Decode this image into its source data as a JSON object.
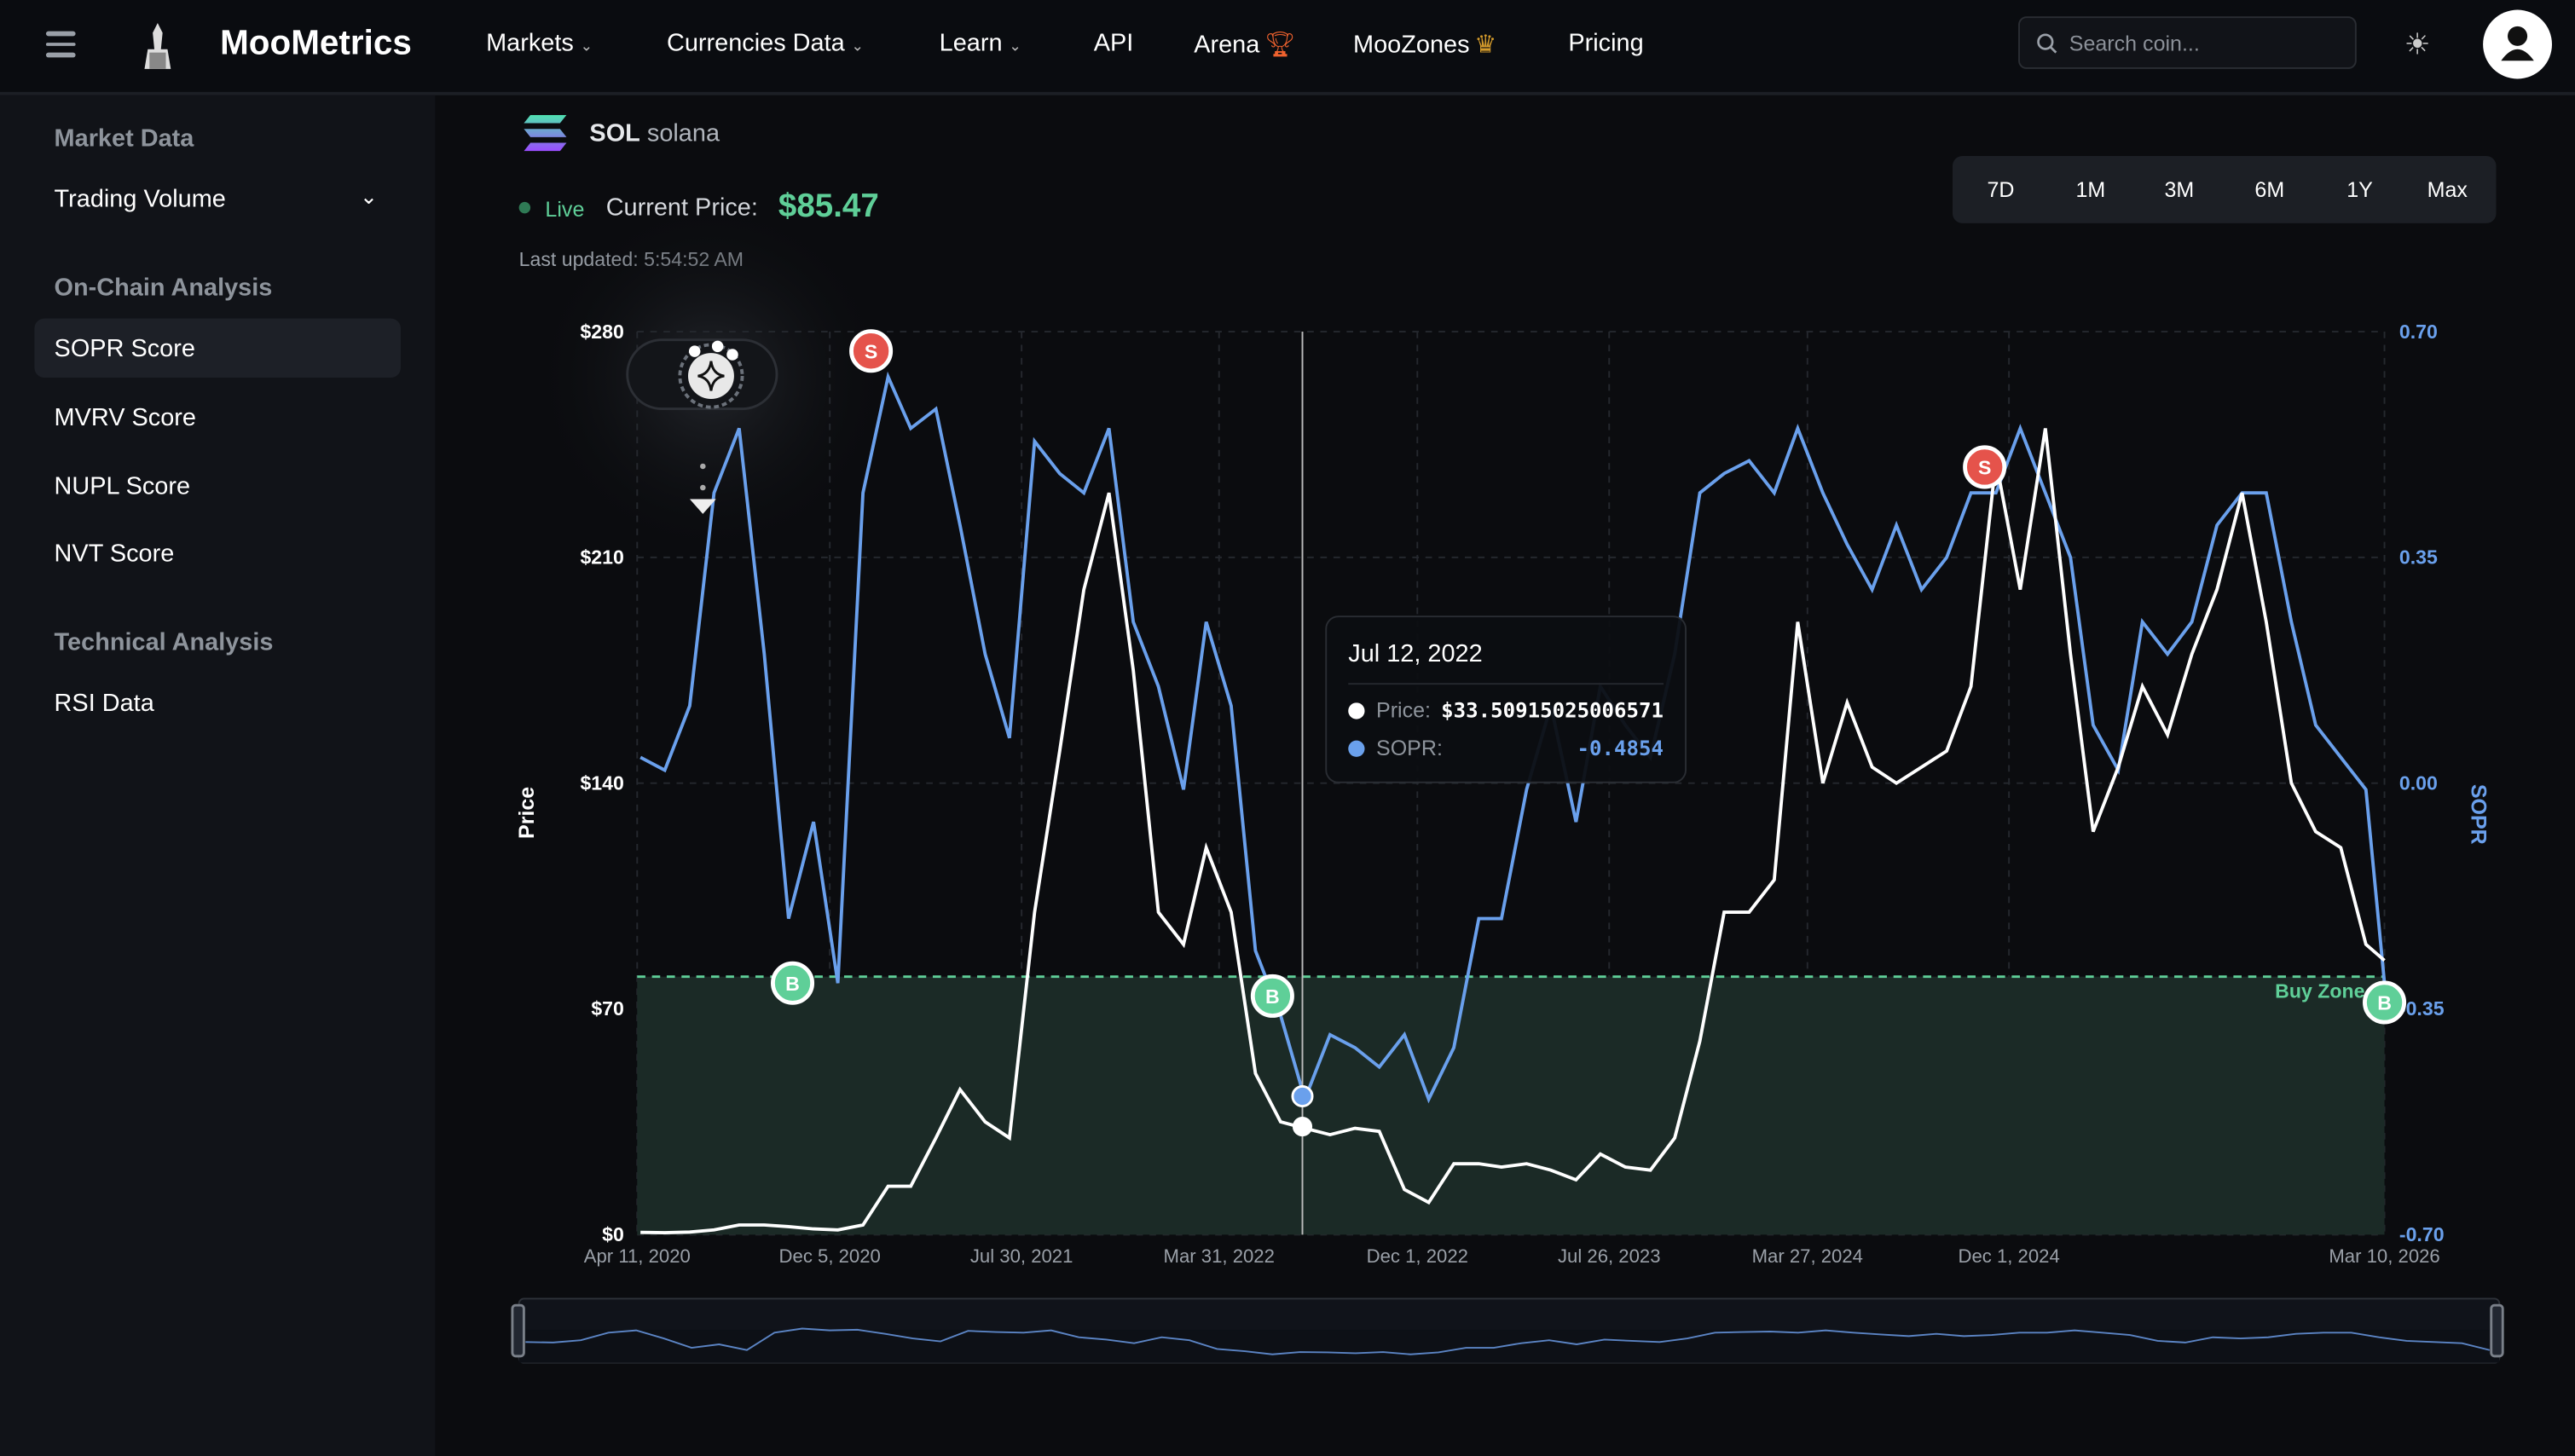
{
  "header": {
    "brand": "MooMetrics",
    "nav": [
      {
        "label": "Markets",
        "dropdown": true
      },
      {
        "label": "Currencies Data",
        "dropdown": true
      },
      {
        "label": "Learn",
        "dropdown": true
      },
      {
        "label": "API"
      },
      {
        "label": "Arena",
        "icon": "trophy-icon"
      },
      {
        "label": "MooZones",
        "icon": "crown-icon"
      },
      {
        "label": "Pricing"
      }
    ],
    "search_placeholder": "Search coin...",
    "theme_icon": "sun-icon",
    "accent_trophy": "#f0622e",
    "accent_crown": "#d39a2b"
  },
  "sidebar": {
    "sections": [
      {
        "title": "Market Data",
        "items": [
          {
            "label": "Trading Volume",
            "dropdown": true
          }
        ]
      },
      {
        "title": "On-Chain Analysis",
        "items": [
          {
            "label": "SOPR Score",
            "active": true
          },
          {
            "label": "MVRV Score"
          },
          {
            "label": "NUPL Score"
          },
          {
            "label": "NVT Score"
          }
        ]
      },
      {
        "title": "Technical Analysis",
        "items": [
          {
            "label": "RSI Data"
          }
        ]
      }
    ]
  },
  "coin": {
    "symbol": "SOL",
    "name": "solana",
    "live": "Live",
    "price_label": "Current Price:",
    "price": "$85.47",
    "updated": "Last updated: 5:54:52 AM"
  },
  "ranges": [
    "7D",
    "1M",
    "3M",
    "6M",
    "1Y",
    "Max"
  ],
  "tooltip": {
    "date": "Jul 12, 2022",
    "price_label": "Price:",
    "price": "$33.50915025006571",
    "sopr_label": "SOPR:",
    "sopr": "-0.4854"
  },
  "chart_data": {
    "type": "line",
    "ylabel_left": "Price",
    "ylabel_right": "SOPR",
    "ylim_left": [
      0,
      280
    ],
    "ylim_right": [
      -0.7,
      0.7
    ],
    "yticks_left": [
      "$0",
      "$70",
      "$140",
      "$210",
      "$280"
    ],
    "yticks_right": [
      "-0.70",
      "-0.35",
      "0.00",
      "0.35",
      "0.70"
    ],
    "xlim": [
      "2020-04-11",
      "2026-03-10"
    ],
    "xticks": [
      {
        "date": "2020-04-11",
        "label": "Apr 11, 2020"
      },
      {
        "date": "2020-12-05",
        "label": "Dec 5, 2020"
      },
      {
        "date": "2021-07-30",
        "label": "Jul 30, 2021"
      },
      {
        "date": "2022-03-31",
        "label": "Mar 31, 2022"
      },
      {
        "date": "2022-12-01",
        "label": "Dec 1, 2022"
      },
      {
        "date": "2023-07-26",
        "label": "Jul 26, 2023"
      },
      {
        "date": "2024-03-27",
        "label": "Mar 27, 2024"
      },
      {
        "date": "2024-12-01",
        "label": "Dec 1, 2024"
      },
      {
        "date": "2026-03-10",
        "label": "Mar 10, 2026"
      }
    ],
    "grid": true,
    "buy_zone": {
      "label": "Buy Zone",
      "sopr_threshold": -0.3,
      "color": "#5fcf98"
    },
    "series": [
      {
        "name": "Price",
        "axis": "left",
        "color": "#ffffff",
        "start": "2020-04",
        "frequency": "monthly",
        "values": [
          0.7,
          0.6,
          0.8,
          1.5,
          3,
          3,
          2.5,
          1.8,
          1.5,
          3,
          15,
          15,
          30,
          45,
          35,
          30,
          100,
          150,
          200,
          230,
          175,
          100,
          90,
          120,
          100,
          50,
          35,
          33,
          31,
          33,
          32,
          14,
          10,
          22,
          22,
          21,
          22,
          20,
          17,
          25,
          21,
          20,
          30,
          60,
          100,
          100,
          110,
          190,
          140,
          165,
          145,
          140,
          145,
          150,
          170,
          240,
          200,
          250,
          180,
          125,
          145,
          170,
          155,
          180,
          200,
          230,
          190,
          140,
          125,
          120,
          90,
          85
        ]
      },
      {
        "name": "SOPR",
        "axis": "right",
        "color": "#6aa0ec",
        "start": "2020-04",
        "frequency": "monthly",
        "values": [
          0.04,
          0.02,
          0.12,
          0.45,
          0.55,
          0.2,
          -0.21,
          -0.06,
          -0.31,
          0.45,
          0.63,
          0.55,
          0.58,
          0.4,
          0.2,
          0.07,
          0.53,
          0.48,
          0.45,
          0.55,
          0.25,
          0.15,
          -0.01,
          0.25,
          0.12,
          -0.26,
          -0.36,
          -0.49,
          -0.39,
          -0.41,
          -0.44,
          -0.39,
          -0.49,
          -0.41,
          -0.21,
          -0.21,
          -0.01,
          0.12,
          -0.06,
          0.15,
          0.09,
          0.04,
          0.2,
          0.45,
          0.48,
          0.5,
          0.45,
          0.55,
          0.45,
          0.37,
          0.3,
          0.4,
          0.3,
          0.35,
          0.45,
          0.45,
          0.55,
          0.45,
          0.35,
          0.09,
          0.02,
          0.25,
          0.2,
          0.25,
          0.4,
          0.45,
          0.45,
          0.25,
          0.09,
          0.04,
          -0.01,
          -0.31
        ]
      }
    ],
    "signals": [
      {
        "label": "B",
        "date": "2020-10-20",
        "sopr": -0.31,
        "color": "#5fcf98"
      },
      {
        "label": "S",
        "date": "2021-01-25",
        "sopr": 0.67,
        "color": "#e5534b"
      },
      {
        "label": "B",
        "date": "2022-06-05",
        "sopr": -0.33,
        "color": "#5fcf98"
      },
      {
        "label": "S",
        "date": "2024-11-01",
        "sopr": 0.49,
        "color": "#e5534b"
      },
      {
        "label": "B",
        "date": "2026-03-10",
        "sopr": -0.34,
        "color": "#5fcf98"
      }
    ],
    "crosshair": {
      "date": "2022-07-12",
      "price": 33.50915025006571,
      "sopr": -0.4854
    }
  }
}
